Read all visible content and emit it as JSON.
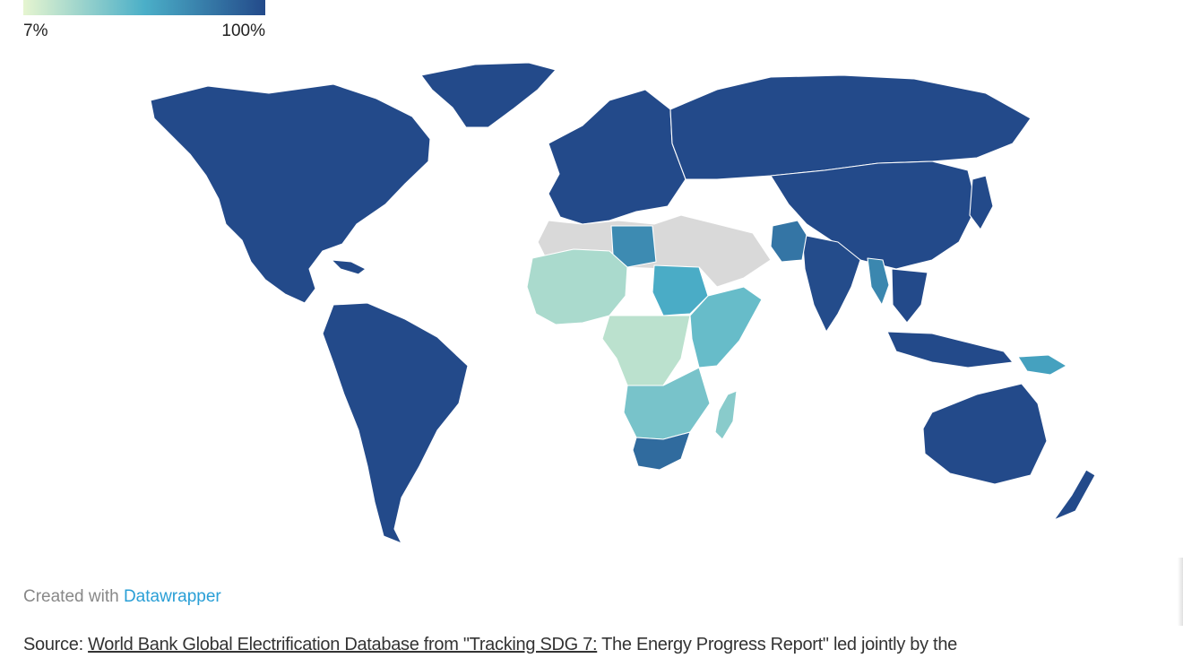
{
  "legend": {
    "min_label": "7%",
    "max_label": "100%",
    "color_low": "#e6f5d0",
    "color_mid": "#4bafc8",
    "color_high": "#234a8a"
  },
  "map": {
    "no_data_color": "#d9d9d9",
    "regions": [
      {
        "name": "North America",
        "value": 100
      },
      {
        "name": "Greenland",
        "value": 100
      },
      {
        "name": "South America",
        "value": 100
      },
      {
        "name": "Europe",
        "value": 100
      },
      {
        "name": "Russia and North Asia",
        "value": 100
      },
      {
        "name": "China",
        "value": 100
      },
      {
        "name": "India",
        "value": 99
      },
      {
        "name": "Australia",
        "value": 100
      },
      {
        "name": "Libya",
        "value": 70
      },
      {
        "name": "Sahel",
        "value": 25
      },
      {
        "name": "Central Africa",
        "value": 20
      },
      {
        "name": "Sudan",
        "value": 55
      },
      {
        "name": "Horn of Africa",
        "value": 45
      },
      {
        "name": "Southern Africa",
        "value": 40
      },
      {
        "name": "South Africa",
        "value": 85
      },
      {
        "name": "Madagascar",
        "value": 35
      },
      {
        "name": "Myanmar",
        "value": 72
      },
      {
        "name": "Pakistan",
        "value": 80
      },
      {
        "name": "Papua New Guinea",
        "value": 60
      }
    ]
  },
  "footer": {
    "created_prefix": "Created with",
    "created_link": "Datawrapper",
    "source_prefix": "Source:",
    "source_link": "World Bank Global Electrification Database from \"Tracking SDG 7:",
    "source_rest": " The Energy Progress Report\" led jointly by the"
  }
}
